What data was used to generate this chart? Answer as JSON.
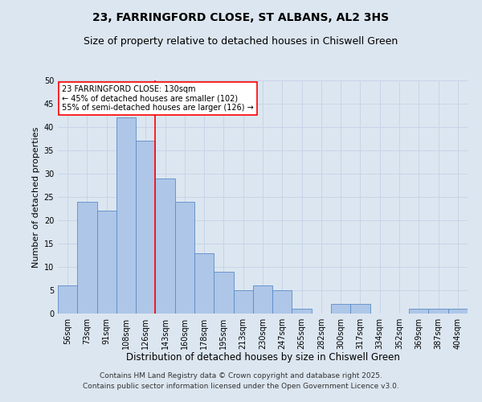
{
  "title_line1": "23, FARRINGFORD CLOSE, ST ALBANS, AL2 3HS",
  "title_line2": "Size of property relative to detached houses in Chiswell Green",
  "xlabel": "Distribution of detached houses by size in Chiswell Green",
  "ylabel": "Number of detached properties",
  "categories": [
    "56sqm",
    "73sqm",
    "91sqm",
    "108sqm",
    "126sqm",
    "143sqm",
    "160sqm",
    "178sqm",
    "195sqm",
    "213sqm",
    "230sqm",
    "247sqm",
    "265sqm",
    "282sqm",
    "300sqm",
    "317sqm",
    "334sqm",
    "352sqm",
    "369sqm",
    "387sqm",
    "404sqm"
  ],
  "values": [
    6,
    24,
    22,
    42,
    37,
    29,
    24,
    13,
    9,
    5,
    6,
    5,
    1,
    0,
    2,
    2,
    0,
    0,
    1,
    1,
    1
  ],
  "bar_color": "#aec6e8",
  "bar_edge_color": "#5b8cc8",
  "bar_width": 1.0,
  "red_line_x": 4.5,
  "annotation_line1": "23 FARRINGFORD CLOSE: 130sqm",
  "annotation_line2": "← 45% of detached houses are smaller (102)",
  "annotation_line3": "55% of semi-detached houses are larger (126) →",
  "annotation_box_color": "white",
  "annotation_box_edge": "red",
  "grid_color": "#c8d4e8",
  "background_color": "#dce6f0",
  "ylim": [
    0,
    50
  ],
  "yticks": [
    0,
    5,
    10,
    15,
    20,
    25,
    30,
    35,
    40,
    45,
    50
  ],
  "footer_line1": "Contains HM Land Registry data © Crown copyright and database right 2025.",
  "footer_line2": "Contains public sector information licensed under the Open Government Licence v3.0.",
  "title_fontsize": 10,
  "subtitle_fontsize": 9,
  "tick_fontsize": 7,
  "xlabel_fontsize": 8.5,
  "ylabel_fontsize": 8,
  "footer_fontsize": 6.5,
  "annotation_fontsize": 7
}
